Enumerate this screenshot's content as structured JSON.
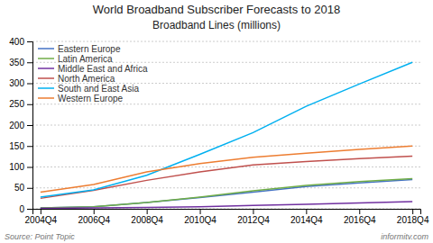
{
  "chart_data": {
    "type": "line",
    "title": "World Broadband Subscriber Forecasts to 2018",
    "subtitle": "Broadband Lines (millions)",
    "annotations": [
      "Source: Point Topic",
      "informitv.com"
    ],
    "categories": [
      "2004Q4",
      "2006Q4",
      "2008Q4",
      "2010Q4",
      "2012Q4",
      "2014Q4",
      "2016Q4",
      "2018Q4"
    ],
    "series": [
      {
        "name": "Eastern Europe",
        "color": "#4472C4",
        "values": [
          2,
          5,
          15,
          27,
          40,
          53,
          62,
          70
        ]
      },
      {
        "name": "Latin America",
        "color": "#70AD47",
        "values": [
          2,
          5,
          15,
          28,
          43,
          56,
          65,
          72
        ]
      },
      {
        "name": "Middle East and Africa",
        "color": "#7030A0",
        "values": [
          1,
          2,
          3,
          5,
          8,
          11,
          14,
          17
        ]
      },
      {
        "name": "North America",
        "color": "#C0504D",
        "values": [
          25,
          44,
          68,
          88,
          105,
          113,
          120,
          126
        ]
      },
      {
        "name": "South and East Asia",
        "color": "#00B0F0",
        "values": [
          28,
          45,
          80,
          130,
          182,
          245,
          298,
          350
        ]
      },
      {
        "name": "Western Europe",
        "color": "#ED7D31",
        "values": [
          40,
          58,
          88,
          108,
          123,
          133,
          142,
          150
        ]
      }
    ],
    "ylim": [
      0,
      400
    ],
    "yticks": [
      0,
      50,
      100,
      150,
      200,
      250,
      300,
      350,
      400
    ],
    "grid": true,
    "legend": "upper-left"
  }
}
